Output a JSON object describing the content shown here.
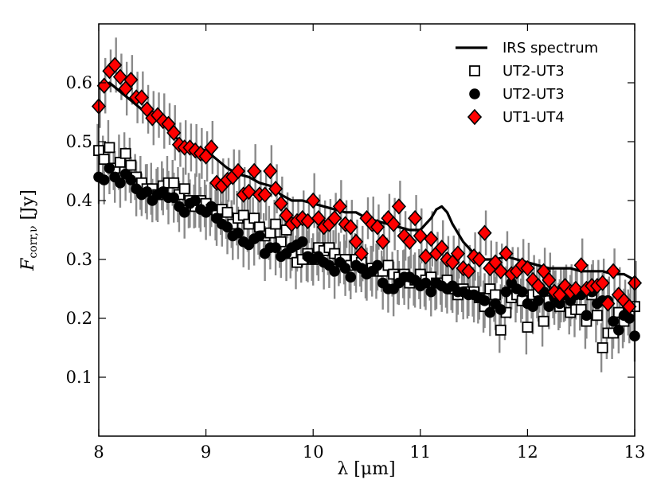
{
  "chart_data": {
    "type": "scatter",
    "xlabel": "λ [μm]",
    "ylabel": "F",
    "ylabel_sub": "corr,ν",
    "ylabel_unit": " [Jy]",
    "xlim": [
      8,
      13
    ],
    "ylim": [
      0.0,
      0.7
    ],
    "xticks": [
      "8",
      "9",
      "10",
      "11",
      "12",
      "13"
    ],
    "yticks": [
      "0.1",
      "0.2",
      "0.3",
      "0.4",
      "0.5",
      "0.6"
    ],
    "grid": false,
    "legend_position": "top-right",
    "legend": [
      "IRS spectrum",
      "UT2-UT3",
      "UT2-UT3",
      "UT1-UT4"
    ],
    "series": [
      {
        "name": "IRS spectrum",
        "style": "line",
        "color": "#000000",
        "x": [
          8.0,
          8.1,
          8.2,
          8.3,
          8.4,
          8.5,
          8.6,
          8.7,
          8.8,
          8.9,
          9.0,
          9.1,
          9.2,
          9.3,
          9.4,
          9.5,
          9.6,
          9.7,
          9.8,
          9.9,
          10.0,
          10.1,
          10.2,
          10.3,
          10.4,
          10.5,
          10.6,
          10.7,
          10.8,
          10.9,
          11.0,
          11.05,
          11.1,
          11.15,
          11.2,
          11.25,
          11.3,
          11.4,
          11.5,
          11.6,
          11.7,
          11.8,
          11.9,
          12.0,
          12.1,
          12.2,
          12.3,
          12.4,
          12.5,
          12.6,
          12.7,
          12.8,
          12.9,
          13.0
        ],
        "y": [
          0.59,
          0.6,
          0.585,
          0.57,
          0.555,
          0.54,
          0.53,
          0.51,
          0.495,
          0.49,
          0.485,
          0.47,
          0.455,
          0.445,
          0.44,
          0.43,
          0.425,
          0.41,
          0.4,
          0.4,
          0.395,
          0.39,
          0.385,
          0.38,
          0.38,
          0.37,
          0.365,
          0.36,
          0.355,
          0.35,
          0.35,
          0.36,
          0.37,
          0.385,
          0.39,
          0.38,
          0.36,
          0.33,
          0.31,
          0.3,
          0.3,
          0.305,
          0.3,
          0.295,
          0.29,
          0.285,
          0.285,
          0.285,
          0.28,
          0.28,
          0.28,
          0.275,
          0.275,
          0.265
        ]
      },
      {
        "name": "UT2-UT3",
        "style": "open-square",
        "color": "#000000",
        "x": [
          8.0,
          8.05,
          8.1,
          8.15,
          8.2,
          8.25,
          8.3,
          8.35,
          8.4,
          8.45,
          8.5,
          8.55,
          8.6,
          8.65,
          8.7,
          8.75,
          8.8,
          8.85,
          8.9,
          8.95,
          9.0,
          9.05,
          9.1,
          9.15,
          9.2,
          9.25,
          9.3,
          9.35,
          9.4,
          9.45,
          9.5,
          9.55,
          9.6,
          9.65,
          9.7,
          9.75,
          9.8,
          9.85,
          9.9,
          9.95,
          10.0,
          10.05,
          10.1,
          10.15,
          10.2,
          10.25,
          10.3,
          10.35,
          10.4,
          10.45,
          10.5,
          10.55,
          10.6,
          10.65,
          10.7,
          10.75,
          10.8,
          10.85,
          10.9,
          10.95,
          11.0,
          11.05,
          11.1,
          11.15,
          11.2,
          11.25,
          11.3,
          11.35,
          11.4,
          11.45,
          11.5,
          11.55,
          11.6,
          11.65,
          11.7,
          11.75,
          11.8,
          11.85,
          11.9,
          11.95,
          12.0,
          12.05,
          12.1,
          12.15,
          12.2,
          12.25,
          12.3,
          12.35,
          12.4,
          12.45,
          12.5,
          12.55,
          12.6,
          12.65,
          12.7,
          12.75,
          12.8,
          12.85,
          12.9,
          12.95,
          13.0
        ],
        "y": [
          0.485,
          0.47,
          0.49,
          0.455,
          0.465,
          0.48,
          0.46,
          0.44,
          0.43,
          0.42,
          0.42,
          0.41,
          0.425,
          0.43,
          0.43,
          0.41,
          0.42,
          0.4,
          0.39,
          0.4,
          0.395,
          0.385,
          0.375,
          0.385,
          0.38,
          0.36,
          0.37,
          0.375,
          0.36,
          0.37,
          0.355,
          0.34,
          0.345,
          0.36,
          0.33,
          0.35,
          0.31,
          0.295,
          0.3,
          0.31,
          0.3,
          0.32,
          0.315,
          0.32,
          0.31,
          0.3,
          0.3,
          0.29,
          0.3,
          0.295,
          0.28,
          0.285,
          0.28,
          0.28,
          0.29,
          0.275,
          0.27,
          0.275,
          0.26,
          0.265,
          0.275,
          0.265,
          0.27,
          0.26,
          0.26,
          0.265,
          0.25,
          0.24,
          0.25,
          0.245,
          0.245,
          0.235,
          0.22,
          0.25,
          0.24,
          0.18,
          0.21,
          0.235,
          0.24,
          0.23,
          0.185,
          0.24,
          0.245,
          0.195,
          0.23,
          0.245,
          0.22,
          0.24,
          0.21,
          0.215,
          0.215,
          0.195,
          0.24,
          0.205,
          0.15,
          0.175,
          0.175,
          0.21,
          0.195,
          0.21,
          0.22
        ]
      },
      {
        "name": "UT2-UT3",
        "style": "filled-circle",
        "color": "#000000",
        "x": [
          8.0,
          8.05,
          8.1,
          8.15,
          8.2,
          8.25,
          8.3,
          8.35,
          8.4,
          8.45,
          8.5,
          8.55,
          8.6,
          8.65,
          8.7,
          8.75,
          8.8,
          8.85,
          8.9,
          8.95,
          9.0,
          9.05,
          9.1,
          9.15,
          9.2,
          9.25,
          9.3,
          9.35,
          9.4,
          9.45,
          9.5,
          9.55,
          9.6,
          9.65,
          9.7,
          9.75,
          9.8,
          9.85,
          9.9,
          9.95,
          10.0,
          10.05,
          10.1,
          10.15,
          10.2,
          10.25,
          10.3,
          10.35,
          10.4,
          10.45,
          10.5,
          10.55,
          10.6,
          10.65,
          10.7,
          10.75,
          10.8,
          10.85,
          10.9,
          10.95,
          11.0,
          11.05,
          11.1,
          11.15,
          11.2,
          11.25,
          11.3,
          11.35,
          11.4,
          11.45,
          11.5,
          11.55,
          11.6,
          11.65,
          11.7,
          11.75,
          11.8,
          11.85,
          11.9,
          11.95,
          12.0,
          12.05,
          12.1,
          12.15,
          12.2,
          12.25,
          12.3,
          12.35,
          12.4,
          12.45,
          12.5,
          12.55,
          12.6,
          12.65,
          12.7,
          12.75,
          12.8,
          12.85,
          12.9,
          12.95,
          13.0
        ],
        "y": [
          0.44,
          0.435,
          0.455,
          0.44,
          0.43,
          0.445,
          0.435,
          0.42,
          0.41,
          0.415,
          0.4,
          0.41,
          0.415,
          0.405,
          0.405,
          0.39,
          0.38,
          0.395,
          0.4,
          0.385,
          0.38,
          0.39,
          0.37,
          0.36,
          0.355,
          0.34,
          0.345,
          0.33,
          0.325,
          0.335,
          0.34,
          0.31,
          0.32,
          0.32,
          0.305,
          0.31,
          0.32,
          0.325,
          0.33,
          0.305,
          0.3,
          0.305,
          0.295,
          0.29,
          0.28,
          0.295,
          0.285,
          0.27,
          0.29,
          0.285,
          0.275,
          0.28,
          0.29,
          0.26,
          0.25,
          0.25,
          0.26,
          0.27,
          0.27,
          0.265,
          0.255,
          0.26,
          0.245,
          0.26,
          0.255,
          0.25,
          0.255,
          0.245,
          0.245,
          0.24,
          0.24,
          0.235,
          0.23,
          0.21,
          0.225,
          0.215,
          0.245,
          0.26,
          0.25,
          0.245,
          0.225,
          0.22,
          0.23,
          0.245,
          0.22,
          0.235,
          0.225,
          0.24,
          0.23,
          0.24,
          0.24,
          0.205,
          0.245,
          0.225,
          0.23,
          0.23,
          0.195,
          0.18,
          0.205,
          0.2,
          0.17
        ]
      },
      {
        "name": "UT1-UT4",
        "style": "red-diamond",
        "color": "#ff0000",
        "x": [
          8.0,
          8.05,
          8.1,
          8.15,
          8.2,
          8.25,
          8.3,
          8.35,
          8.4,
          8.45,
          8.5,
          8.55,
          8.6,
          8.65,
          8.7,
          8.75,
          8.8,
          8.85,
          8.9,
          8.95,
          9.0,
          9.05,
          9.1,
          9.15,
          9.2,
          9.25,
          9.3,
          9.35,
          9.4,
          9.45,
          9.5,
          9.55,
          9.6,
          9.65,
          9.7,
          9.75,
          9.8,
          9.85,
          9.9,
          9.95,
          10.0,
          10.05,
          10.1,
          10.15,
          10.2,
          10.25,
          10.3,
          10.35,
          10.4,
          10.45,
          10.5,
          10.55,
          10.6,
          10.65,
          10.7,
          10.75,
          10.8,
          10.85,
          10.9,
          10.95,
          11.0,
          11.05,
          11.1,
          11.15,
          11.2,
          11.25,
          11.3,
          11.35,
          11.4,
          11.45,
          11.5,
          11.55,
          11.6,
          11.65,
          11.7,
          11.75,
          11.8,
          11.85,
          11.9,
          11.95,
          12.0,
          12.05,
          12.1,
          12.15,
          12.2,
          12.25,
          12.3,
          12.35,
          12.4,
          12.45,
          12.5,
          12.55,
          12.6,
          12.65,
          12.7,
          12.75,
          12.8,
          12.85,
          12.9,
          12.95,
          13.0
        ],
        "y": [
          0.56,
          0.595,
          0.62,
          0.63,
          0.61,
          0.59,
          0.605,
          0.575,
          0.575,
          0.555,
          0.54,
          0.545,
          0.535,
          0.53,
          0.515,
          0.495,
          0.49,
          0.49,
          0.485,
          0.48,
          0.475,
          0.49,
          0.43,
          0.425,
          0.435,
          0.44,
          0.45,
          0.41,
          0.415,
          0.45,
          0.41,
          0.41,
          0.45,
          0.42,
          0.395,
          0.375,
          0.36,
          0.365,
          0.37,
          0.365,
          0.4,
          0.37,
          0.355,
          0.36,
          0.37,
          0.39,
          0.36,
          0.355,
          0.33,
          0.31,
          0.37,
          0.36,
          0.355,
          0.33,
          0.37,
          0.36,
          0.39,
          0.34,
          0.33,
          0.37,
          0.34,
          0.305,
          0.335,
          0.31,
          0.32,
          0.3,
          0.295,
          0.31,
          0.285,
          0.28,
          0.305,
          0.3,
          0.345,
          0.285,
          0.295,
          0.28,
          0.31,
          0.275,
          0.28,
          0.29,
          0.285,
          0.265,
          0.255,
          0.28,
          0.265,
          0.245,
          0.24,
          0.255,
          0.245,
          0.25,
          0.29,
          0.25,
          0.255,
          0.255,
          0.26,
          0.225,
          0.28,
          0.24,
          0.23,
          0.22,
          0.26
        ]
      }
    ]
  }
}
